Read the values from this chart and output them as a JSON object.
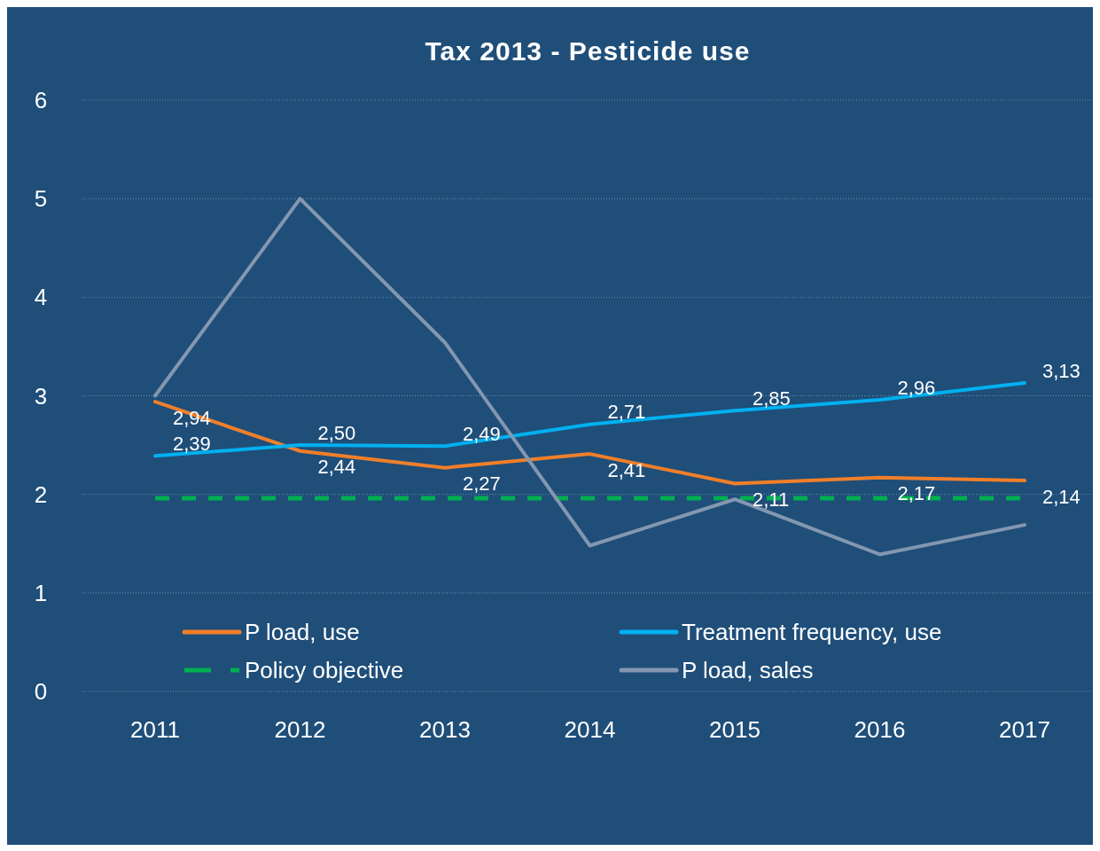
{
  "chart_data": {
    "type": "line",
    "title": "Tax 2013 - Pesticide use",
    "categories": [
      "2011",
      "2012",
      "2013",
      "2014",
      "2015",
      "2016",
      "2017"
    ],
    "series": [
      {
        "name": "P load, use",
        "color": "#f07f2a",
        "values": [
          2.94,
          2.44,
          2.27,
          2.41,
          2.11,
          2.17,
          2.14
        ],
        "value_labels": [
          "2,94",
          "2,44",
          "2,27",
          "2,41",
          "2,11",
          "2,17",
          "2,14"
        ]
      },
      {
        "name": "Treatment frequency, use",
        "color": "#00b0f0",
        "values": [
          2.39,
          2.5,
          2.49,
          2.71,
          2.85,
          2.96,
          3.13
        ],
        "value_labels": [
          "2,39",
          "2,50",
          "2,49",
          "2,71",
          "2,85",
          "2,96",
          "3,13"
        ]
      },
      {
        "name": "Policy objective",
        "color": "#00b050",
        "values": [
          1.96,
          1.96,
          1.96,
          1.96,
          1.96,
          1.96,
          1.96
        ],
        "line_style": "dashed"
      },
      {
        "name": "P load, sales",
        "color": "#8497b0",
        "values": [
          3.0,
          5.0,
          3.54,
          1.48,
          1.95,
          1.39,
          1.69
        ]
      }
    ],
    "ylim": [
      0,
      6
    ],
    "yticks": [
      0,
      1,
      2,
      3,
      4,
      5,
      6
    ],
    "grid": "y",
    "legend": "bottom",
    "marker": "none"
  }
}
